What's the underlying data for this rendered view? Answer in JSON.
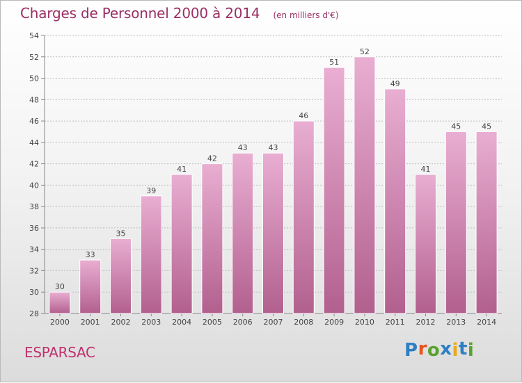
{
  "header": {
    "title": "Charges de Personnel 2000 à 2014",
    "subtitle": "(en milliers d'€)"
  },
  "footer": {
    "place_name": "ESPARSAC",
    "brand": {
      "text": "Proxiti",
      "letter_colors": [
        "#2e7fc2",
        "#e8521c",
        "#58a22e",
        "#2e7fc2",
        "#e8a91c",
        "#2e7fc2",
        "#58a22e"
      ]
    }
  },
  "colors": {
    "bar_top": "#e9aed2",
    "bar_bottom": "#b2608e",
    "bar_edge": "#ffffff",
    "grid": "#bdbdbd",
    "title": "#9a2f64",
    "place": "#c0316e"
  },
  "chart_data": {
    "type": "bar",
    "title": "Charges de Personnel 2000 à 2014",
    "subtitle": "(en milliers d'€)",
    "xlabel": "",
    "ylabel": "",
    "categories": [
      "2000",
      "2001",
      "2002",
      "2003",
      "2004",
      "2005",
      "2006",
      "2007",
      "2008",
      "2009",
      "2010",
      "2011",
      "2012",
      "2013",
      "2014"
    ],
    "values": [
      30,
      33,
      35,
      39,
      41,
      42,
      43,
      43,
      46,
      51,
      52,
      49,
      41,
      45,
      45
    ],
    "ylim": [
      28,
      54
    ],
    "yticks": [
      28,
      30,
      32,
      34,
      36,
      38,
      40,
      42,
      44,
      46,
      48,
      50,
      52,
      54
    ],
    "grid": true,
    "legend": "none",
    "data_labels": true
  }
}
